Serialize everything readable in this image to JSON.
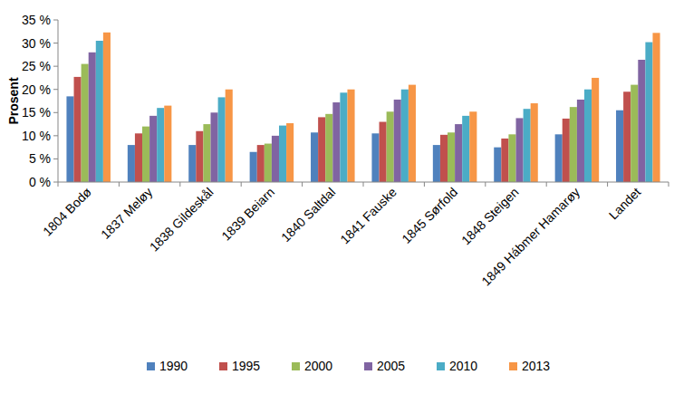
{
  "chart_data": {
    "type": "bar",
    "y_label": "Prosent",
    "categories": [
      "1804 Bodø",
      "1837 Meløy",
      "1838 Gildeskål",
      "1839 Beiarn",
      "1840 Saltdal",
      "1841 Fauske",
      "1845 Sørfold",
      "1848 Steigen",
      "1849 Hábmer Hamarøy",
      "Landet"
    ],
    "series": [
      {
        "name": "1990",
        "color": "#4f81bd",
        "values": [
          18.5,
          8,
          8,
          6.5,
          10.7,
          10.5,
          8,
          7.5,
          10.3,
          15.5
        ]
      },
      {
        "name": "1995",
        "color": "#c0504d",
        "values": [
          22.7,
          10.5,
          11,
          8,
          14,
          13,
          10.2,
          9.4,
          13.7,
          19.5
        ]
      },
      {
        "name": "2000",
        "color": "#9bbb59",
        "values": [
          25.5,
          12,
          12.5,
          8.3,
          14.7,
          15.2,
          10.7,
          10.3,
          16.2,
          21
        ]
      },
      {
        "name": "2005",
        "color": "#8064a2",
        "values": [
          28,
          14.3,
          15,
          10,
          17.2,
          17.8,
          12.5,
          13.8,
          17.8,
          26.4
        ]
      },
      {
        "name": "2010",
        "color": "#4bacc6",
        "values": [
          30.5,
          16,
          18.3,
          12.2,
          19.3,
          20,
          14.3,
          15.8,
          20,
          30.2
        ]
      },
      {
        "name": "2013",
        "color": "#f79646",
        "values": [
          32.3,
          16.5,
          20,
          12.7,
          20,
          21,
          15.2,
          17,
          22.5,
          32.2
        ]
      }
    ],
    "ylim": [
      0,
      35
    ],
    "yticks": [
      {
        "value": 0,
        "label": "0 %"
      },
      {
        "value": 5,
        "label": "5 %"
      },
      {
        "value": 10,
        "label": "10 %"
      },
      {
        "value": 15,
        "label": "15 %"
      },
      {
        "value": 20,
        "label": "20 %"
      },
      {
        "value": 25,
        "label": "25 %"
      },
      {
        "value": 30,
        "label": "30 %"
      },
      {
        "value": 35,
        "label": "35 %"
      }
    ],
    "grid": false,
    "legend": "bottom"
  }
}
